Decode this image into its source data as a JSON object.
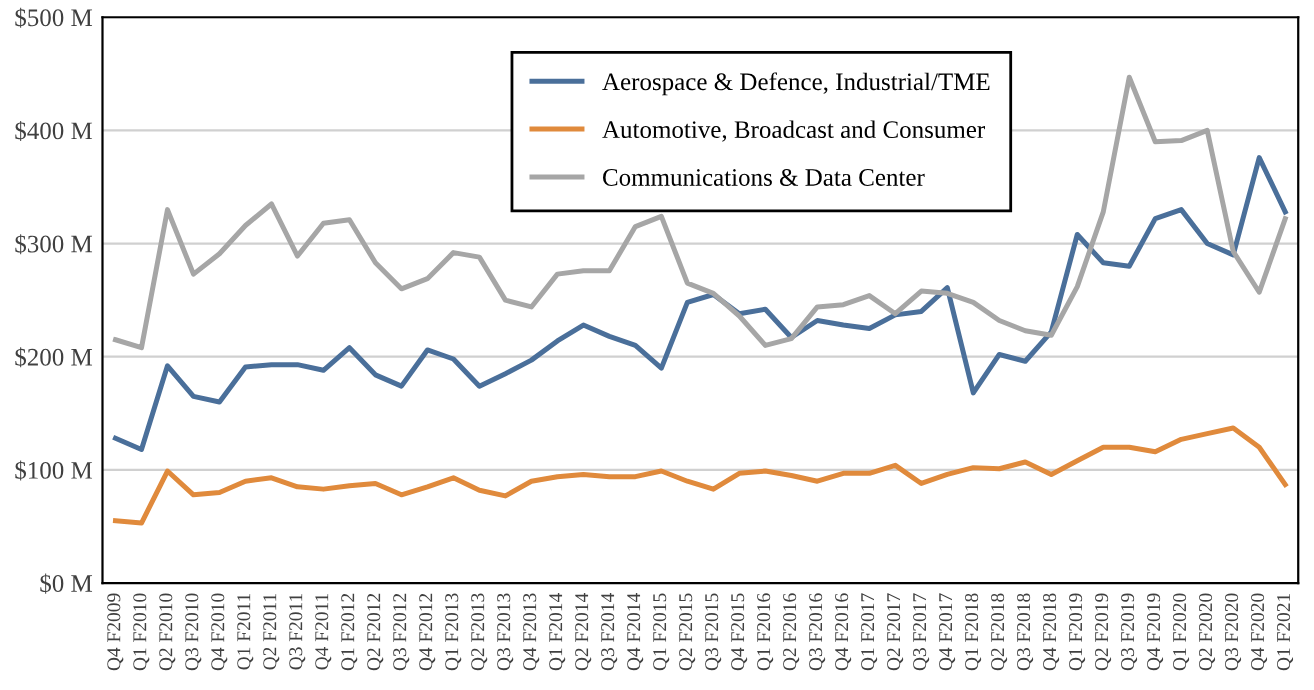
{
  "chart_data": {
    "type": "line",
    "categories": [
      "Q4 F2009",
      "Q1 F2010",
      "Q2 F2010",
      "Q3 F2010",
      "Q4 F2010",
      "Q1 F2011",
      "Q2 F2011",
      "Q3 F2011",
      "Q4 F2011",
      "Q1 F2012",
      "Q2 F2012",
      "Q3 F2012",
      "Q4 F2012",
      "Q1 F2013",
      "Q2 F2013",
      "Q3 F2013",
      "Q4 F2013",
      "Q1 F2014",
      "Q2 F2014",
      "Q3 F2014",
      "Q4 F2014",
      "Q1 F2015",
      "Q2 F2015",
      "Q3 F2015",
      "Q4 F2015",
      "Q1 F2016",
      "Q2 F2016",
      "Q3 F2016",
      "Q4 F2016",
      "Q1 F2017",
      "Q2 F2017",
      "Q3 F2017",
      "Q4 F2017",
      "Q1 F2018",
      "Q2 F2018",
      "Q3 F2018",
      "Q4 F2018",
      "Q1 F2019",
      "Q2 F2019",
      "Q3 F2019",
      "Q4 F2019",
      "Q1 F2020",
      "Q2 F2020",
      "Q3 F2020",
      "Q4 F2020",
      "Q1 F2021"
    ],
    "series": [
      {
        "name": "Aerospace & Defence, Industrial/TME",
        "color": "#4a6f9a",
        "values": [
          128,
          118,
          192,
          165,
          160,
          191,
          193,
          193,
          188,
          208,
          184,
          174,
          206,
          198,
          174,
          185,
          197,
          214,
          228,
          218,
          210,
          190,
          248,
          255,
          238,
          242,
          217,
          232,
          228,
          225,
          237,
          240,
          261,
          168,
          202,
          196,
          222,
          308,
          283,
          280,
          322,
          330,
          300,
          290,
          376,
          328
        ]
      },
      {
        "name": "Automotive, Broadcast and Consumer",
        "color": "#e08a3c",
        "values": [
          55,
          53,
          99,
          78,
          80,
          90,
          93,
          85,
          83,
          86,
          88,
          78,
          85,
          93,
          82,
          77,
          90,
          94,
          96,
          94,
          94,
          99,
          90,
          83,
          97,
          99,
          95,
          90,
          97,
          97,
          104,
          88,
          96,
          102,
          101,
          107,
          96,
          108,
          120,
          120,
          116,
          127,
          132,
          137,
          120,
          87
        ]
      },
      {
        "name": "Communications & Data Center",
        "color": "#a6a6a6",
        "values": [
          215,
          208,
          330,
          273,
          291,
          316,
          335,
          289,
          318,
          321,
          283,
          260,
          269,
          292,
          288,
          250,
          244,
          273,
          276,
          276,
          315,
          324,
          265,
          256,
          236,
          210,
          216,
          244,
          246,
          254,
          238,
          258,
          256,
          248,
          232,
          223,
          219,
          262,
          328,
          447,
          390,
          391,
          400,
          293,
          257,
          322
        ]
      }
    ],
    "ylim": [
      0,
      500
    ],
    "yticks": [
      {
        "value": 0,
        "label": "$0 M"
      },
      {
        "value": 100,
        "label": "$100 M"
      },
      {
        "value": 200,
        "label": "$200 M"
      },
      {
        "value": 300,
        "label": "$300 M"
      },
      {
        "value": 400,
        "label": "$400 M"
      },
      {
        "value": 500,
        "label": "$500 M"
      }
    ],
    "grid": "y",
    "legend": "top right",
    "marker": "none",
    "line_style": "solid"
  }
}
